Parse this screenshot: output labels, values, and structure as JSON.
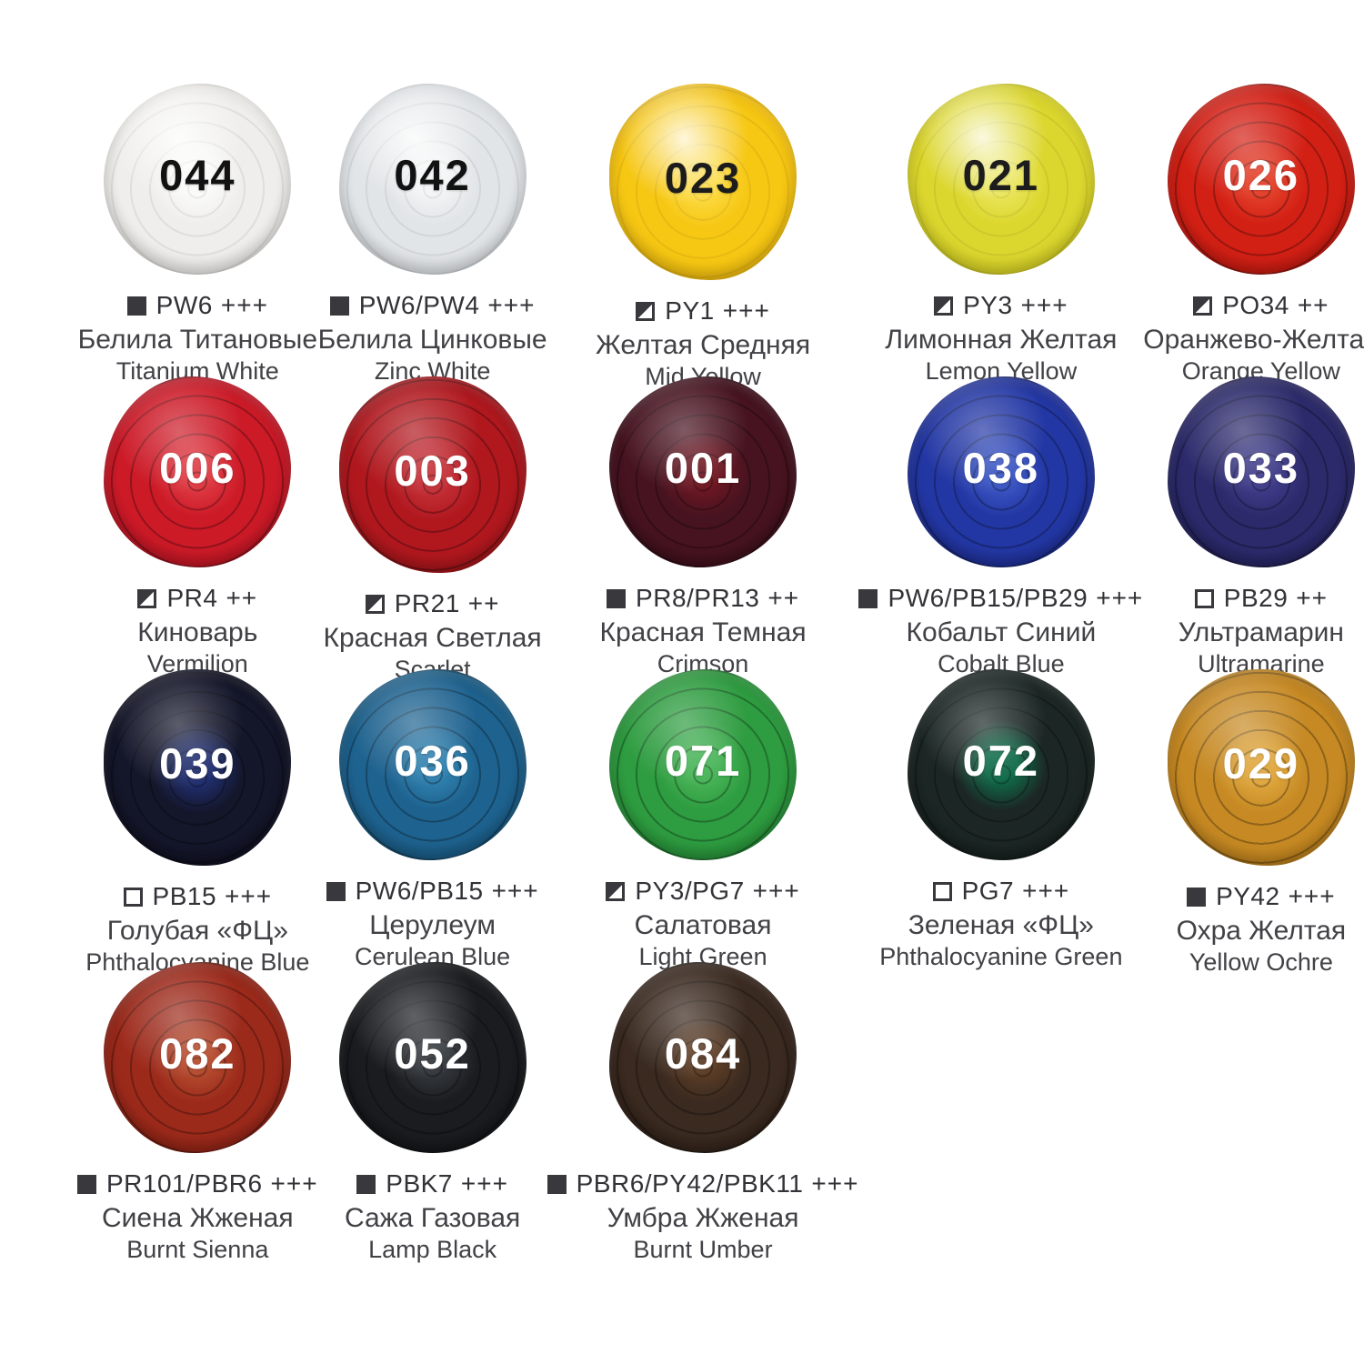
{
  "page": {
    "background": "#ffffff"
  },
  "swatches": [
    {
      "number": "044",
      "icon": "opacity-opaque-icon",
      "opacity": "filled",
      "pigment_code": "PW6",
      "lightfastness": "+++",
      "name_ru": "Белила Титановые",
      "name_en": "Titanium White",
      "colors": {
        "base": "#efeeec",
        "rim": "#d5d3cf",
        "sheen": "#fafaf8",
        "number": "#121212"
      }
    },
    {
      "number": "042",
      "icon": "opacity-opaque-icon",
      "opacity": "filled",
      "pigment_code": "PW6/PW4",
      "lightfastness": "+++",
      "name_ru": "Белила Цинковые",
      "name_en": "Zinc White",
      "colors": {
        "base": "#e2e5e7",
        "rim": "#c4c9cd",
        "sheen": "#f2f4f5",
        "number": "#121212"
      }
    },
    {
      "number": "023",
      "icon": "opacity-semitransparent-icon",
      "opacity": "half",
      "pigment_code": "PY1",
      "lightfastness": "+++",
      "name_ru": "Желтая Средняя",
      "name_en": "Mid Yellow",
      "colors": {
        "base": "#f6c713",
        "rim": "#dba409",
        "sheen": "#fcd93f",
        "number": "#1c1c1c"
      }
    },
    {
      "number": "021",
      "icon": "opacity-semitransparent-icon",
      "opacity": "half",
      "pigment_code": "PY3",
      "lightfastness": "+++",
      "name_ru": "Лимонная Желтая",
      "name_en": "Lemon Yellow",
      "colors": {
        "base": "#dcd72e",
        "rim": "#bdb813",
        "sheen": "#e9e55a",
        "number": "#1c1c1c"
      }
    },
    {
      "number": "026",
      "icon": "opacity-semitransparent-icon",
      "opacity": "half",
      "pigment_code": "PO34",
      "lightfastness": "++",
      "name_ru": "Оранжево-Желтая",
      "name_en": "Orange Yellow",
      "colors": {
        "base": "#d32015",
        "rim": "#9e0f07",
        "sheen": "#e3402a",
        "number": "#ffffff"
      }
    },
    {
      "number": "006",
      "icon": "opacity-semitransparent-icon",
      "opacity": "half",
      "pigment_code": "PR4",
      "lightfastness": "++",
      "name_ru": "Киноварь",
      "name_en": "Vermilion",
      "colors": {
        "base": "#cc1a27",
        "rim": "#970d1b",
        "sheen": "#de3a43",
        "number": "#ffffff"
      }
    },
    {
      "number": "003",
      "icon": "opacity-semitransparent-icon",
      "opacity": "half",
      "pigment_code": "PR21",
      "lightfastness": "++",
      "name_ru": "Красная Светлая",
      "name_en": "Scarlet",
      "colors": {
        "base": "#b0181e",
        "rim": "#7f0e12",
        "sheen": "#c43038",
        "number": "#ffffff"
      }
    },
    {
      "number": "001",
      "icon": "opacity-opaque-icon",
      "opacity": "filled",
      "pigment_code": "PR8/PR13",
      "lightfastness": "++",
      "name_ru": "Красная Темная",
      "name_en": "Crimson",
      "colors": {
        "base": "#471320",
        "rim": "#2a0911",
        "sheen": "#6e1722",
        "number": "#ffffff"
      }
    },
    {
      "number": "038",
      "icon": "opacity-opaque-icon",
      "opacity": "filled",
      "pigment_code": "PW6/PB15/PB29",
      "lightfastness": "+++",
      "name_ru": "Кобальт Синий",
      "name_en": "Cobalt Blue",
      "colors": {
        "base": "#2337a4",
        "rim": "#131f6f",
        "sheen": "#3a55c2",
        "number": "#ffffff"
      }
    },
    {
      "number": "033",
      "icon": "opacity-transparent-icon",
      "opacity": "outline",
      "pigment_code": "PB29",
      "lightfastness": "++",
      "name_ru": "Ультрамарин",
      "name_en": "Ultramarine",
      "colors": {
        "base": "#2c2a6b",
        "rim": "#181743",
        "sheen": "#403d8a",
        "number": "#ffffff"
      }
    },
    {
      "number": "039",
      "icon": "opacity-transparent-icon",
      "opacity": "outline",
      "pigment_code": "PB15",
      "lightfastness": "+++",
      "name_ru": "Голубая «ФЦ»",
      "name_en": "Phthalocyanine Blue",
      "colors": {
        "base": "#14162a",
        "rim": "#080913",
        "sheen": "#202e6e",
        "number": "#ffffff"
      }
    },
    {
      "number": "036",
      "icon": "opacity-opaque-icon",
      "opacity": "filled",
      "pigment_code": "PW6/PB15",
      "lightfastness": "+++",
      "name_ru": "Церулеум",
      "name_en": "Cerulean Blue",
      "colors": {
        "base": "#1e628f",
        "rim": "#104563",
        "sheen": "#2f80ae",
        "number": "#ffffff"
      }
    },
    {
      "number": "071",
      "icon": "opacity-semitransparent-icon",
      "opacity": "half",
      "pigment_code": "PY3/PG7",
      "lightfastness": "+++",
      "name_ru": "Салатовая",
      "name_en": "Light Green",
      "colors": {
        "base": "#2e9c40",
        "rim": "#1a7428",
        "sheen": "#48b458",
        "number": "#ffffff"
      }
    },
    {
      "number": "072",
      "icon": "opacity-transparent-icon",
      "opacity": "outline",
      "pigment_code": "PG7",
      "lightfastness": "+++",
      "name_ru": "Зеленая «ФЦ»",
      "name_en": "Phthalocyanine Green",
      "colors": {
        "base": "#1c2725",
        "rim": "#0c1412",
        "sheen": "#0f6a49",
        "number": "#ffffff"
      }
    },
    {
      "number": "029",
      "icon": "opacity-opaque-icon",
      "opacity": "filled",
      "pigment_code": "PY42",
      "lightfastness": "+++",
      "name_ru": "Охра Желтая",
      "name_en": "Yellow Ochre",
      "colors": {
        "base": "#c68923",
        "rim": "#9c6710",
        "sheen": "#dfa63d",
        "number": "#ffffff"
      }
    },
    {
      "number": "082",
      "icon": "opacity-opaque-icon",
      "opacity": "filled",
      "pigment_code": "PR101/PBR6",
      "lightfastness": "+++",
      "name_ru": "Сиена Жженая",
      "name_en": "Burnt Sienna",
      "colors": {
        "base": "#9c2a1b",
        "rim": "#6e160c",
        "sheen": "#b44b2e",
        "number": "#ffffff"
      }
    },
    {
      "number": "052",
      "icon": "opacity-opaque-icon",
      "opacity": "filled",
      "pigment_code": "PBK7",
      "lightfastness": "+++",
      "name_ru": "Сажа Газовая",
      "name_en": "Lamp Black",
      "colors": {
        "base": "#1a1c1f",
        "rim": "#0a0b0d",
        "sheen": "#34383d",
        "number": "#ffffff"
      }
    },
    {
      "number": "084",
      "icon": "opacity-opaque-icon",
      "opacity": "filled",
      "pigment_code": "PBR6/PY42/PBK11",
      "lightfastness": "+++",
      "name_ru": "Умбра Жженая",
      "name_en": "Burnt Umber",
      "colors": {
        "base": "#3a2a20",
        "rim": "#21140e",
        "sheen": "#5c3d26",
        "number": "#ffffff"
      }
    }
  ]
}
